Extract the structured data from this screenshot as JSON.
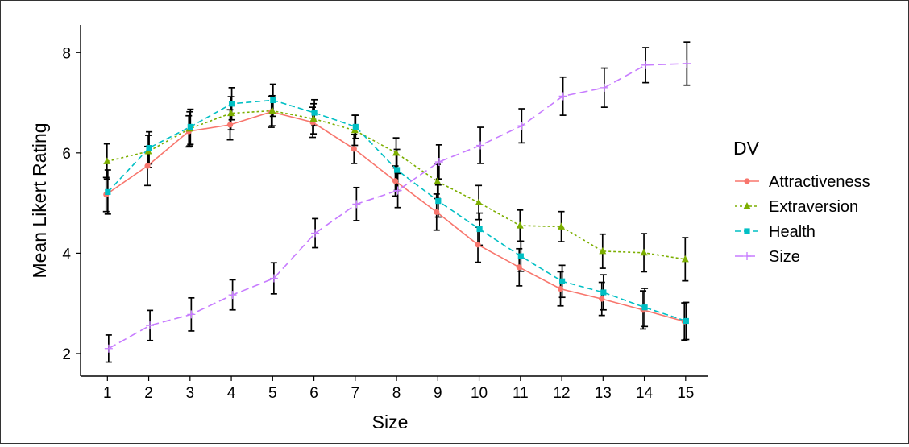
{
  "chart_data": {
    "type": "line",
    "title": "",
    "xlabel": "Size",
    "ylabel": "Mean Likert Rating",
    "xlim": [
      0.35,
      15.55
    ],
    "ylim": [
      1.55,
      8.55
    ],
    "x_ticks": [
      1,
      2,
      3,
      4,
      5,
      6,
      7,
      8,
      9,
      10,
      11,
      12,
      13,
      14,
      15
    ],
    "y_ticks": [
      2,
      4,
      6,
      8
    ],
    "grid": false,
    "legend": {
      "title": "DV",
      "position": "right"
    },
    "error_bars": true,
    "series": [
      {
        "name": "Attractiveness",
        "color": "#F8766D",
        "marker": "circle",
        "line": "solid",
        "x": [
          1,
          2,
          3,
          4,
          5,
          6,
          7,
          8,
          9,
          10,
          11,
          12,
          13,
          14,
          15
        ],
        "y": [
          5.17,
          5.74,
          6.43,
          6.56,
          6.82,
          6.61,
          6.08,
          5.44,
          4.82,
          4.17,
          3.72,
          3.29,
          3.09,
          2.87,
          2.64
        ],
        "err": [
          0.34,
          0.39,
          0.31,
          0.3,
          0.31,
          0.3,
          0.29,
          0.3,
          0.36,
          0.35,
          0.37,
          0.34,
          0.33,
          0.38,
          0.37
        ]
      },
      {
        "name": "Extraversion",
        "color": "#7CAE00",
        "marker": "triangle",
        "line": "dotted",
        "x": [
          1,
          2,
          3,
          4,
          5,
          6,
          7,
          8,
          9,
          10,
          11,
          12,
          13,
          14,
          15
        ],
        "y": [
          5.83,
          6.03,
          6.48,
          6.79,
          6.84,
          6.68,
          6.45,
          6.0,
          5.43,
          5.01,
          4.55,
          4.53,
          4.04,
          4.01,
          3.88
        ],
        "err": [
          0.35,
          0.32,
          0.34,
          0.33,
          0.3,
          0.3,
          0.3,
          0.3,
          0.34,
          0.34,
          0.31,
          0.3,
          0.34,
          0.38,
          0.43
        ]
      },
      {
        "name": "Health",
        "color": "#00BFC4",
        "marker": "square",
        "line": "dashed",
        "x": [
          1,
          2,
          3,
          4,
          5,
          6,
          7,
          8,
          9,
          10,
          11,
          12,
          13,
          14,
          15
        ],
        "y": [
          5.22,
          6.1,
          6.52,
          6.98,
          7.05,
          6.8,
          6.52,
          5.66,
          5.04,
          4.48,
          3.94,
          3.44,
          3.22,
          2.92,
          2.65
        ],
        "err": [
          0.44,
          0.32,
          0.35,
          0.32,
          0.32,
          0.26,
          0.23,
          0.41,
          0.32,
          0.32,
          0.3,
          0.32,
          0.35,
          0.38,
          0.37
        ]
      },
      {
        "name": "Size",
        "color": "#C77CFF",
        "marker": "plus",
        "line": "longdash",
        "x": [
          1,
          2,
          3,
          4,
          5,
          6,
          7,
          8,
          9,
          10,
          11,
          12,
          13,
          14,
          15
        ],
        "y": [
          2.1,
          2.56,
          2.78,
          3.17,
          3.5,
          4.4,
          4.98,
          5.25,
          5.82,
          6.15,
          6.54,
          7.13,
          7.3,
          7.75,
          7.78
        ],
        "err": [
          0.27,
          0.3,
          0.33,
          0.3,
          0.31,
          0.29,
          0.33,
          0.34,
          0.34,
          0.36,
          0.34,
          0.38,
          0.39,
          0.35,
          0.43
        ]
      }
    ]
  }
}
